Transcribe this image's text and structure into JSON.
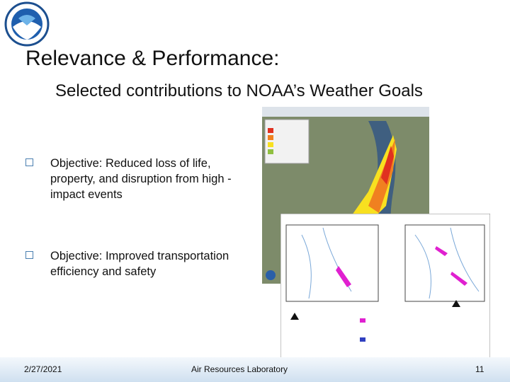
{
  "header": {
    "title": "Relevance & Performance:",
    "subtitle": "Selected contributions to NOAA’s Weather Goals"
  },
  "bullets": [
    "Objective: Reduced loss of life, property, and disruption from high -impact events",
    "Objective: Improved transportation efficiency and safety"
  ],
  "footer": {
    "date": "2/27/2021",
    "organization": "Air Resources Laboratory",
    "page": "11"
  }
}
